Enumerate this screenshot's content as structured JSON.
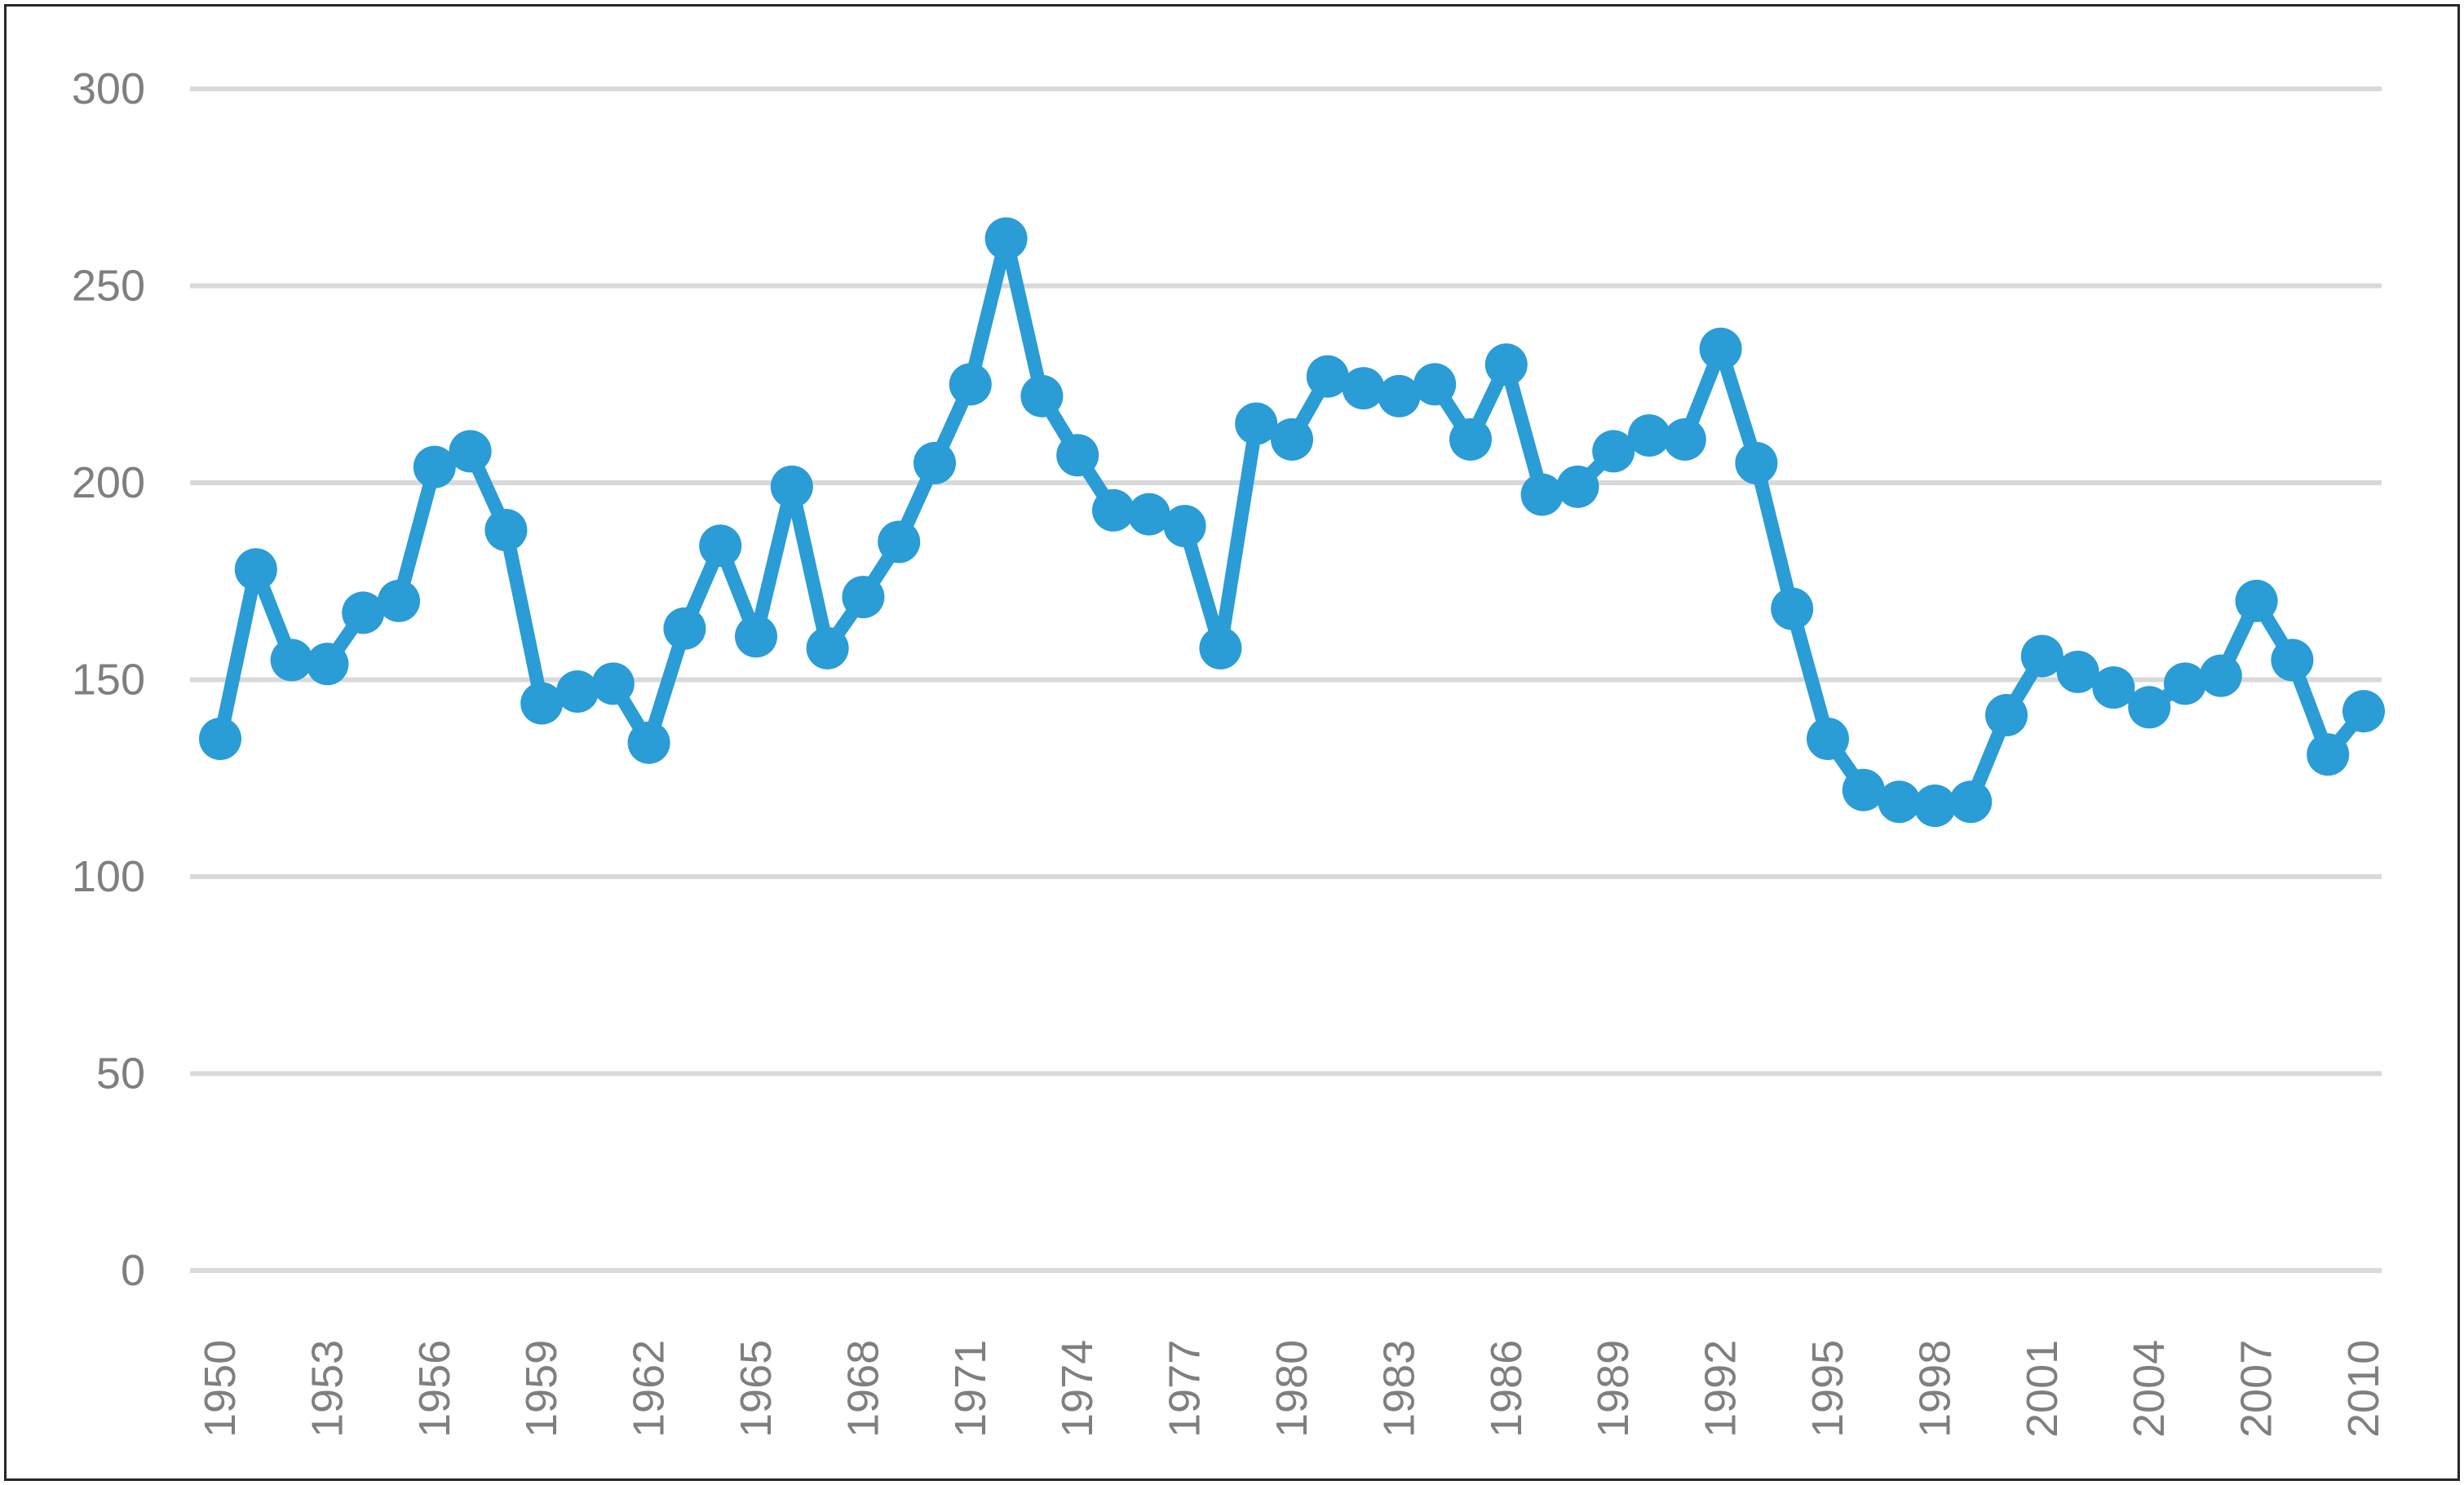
{
  "chart_data": {
    "type": "line",
    "title": "",
    "xlabel": "",
    "ylabel": "",
    "years": [
      1950,
      1951,
      1952,
      1953,
      1954,
      1955,
      1956,
      1957,
      1958,
      1959,
      1960,
      1961,
      1962,
      1963,
      1964,
      1965,
      1966,
      1967,
      1968,
      1969,
      1970,
      1971,
      1972,
      1973,
      1974,
      1975,
      1976,
      1977,
      1978,
      1979,
      1980,
      1981,
      1982,
      1983,
      1984,
      1985,
      1986,
      1987,
      1988,
      1989,
      1990,
      1991,
      1992,
      1993,
      1994,
      1995,
      1996,
      1997,
      1998,
      1999,
      2000,
      2001,
      2002,
      2003,
      2004,
      2005,
      2006,
      2007,
      2008,
      2009,
      2010
    ],
    "values": [
      135,
      178,
      155,
      154,
      167,
      170,
      204,
      208,
      188,
      144,
      147,
      149,
      134,
      163,
      184,
      161,
      199,
      158,
      171,
      185,
      205,
      225,
      262,
      222,
      207,
      193,
      192,
      189,
      158,
      215,
      211,
      227,
      224,
      222,
      225,
      211,
      230,
      197,
      199,
      208,
      212,
      211,
      234,
      205,
      168,
      135,
      122,
      119,
      118,
      119,
      141,
      156,
      152,
      148,
      143,
      149,
      151,
      170,
      155,
      131,
      142
    ],
    "x_tick_labels": [
      "1950",
      "1953",
      "1956",
      "1959",
      "1962",
      "1965",
      "1968",
      "1971",
      "1974",
      "1977",
      "1980",
      "1983",
      "1986",
      "1989",
      "1992",
      "1995",
      "1998",
      "2001",
      "2004",
      "2007",
      "2010"
    ],
    "x_tick_step_years": 3,
    "y_tick_labels": [
      "0",
      "50",
      "100",
      "150",
      "200",
      "250",
      "300"
    ],
    "y_ticks": [
      0,
      50,
      100,
      150,
      200,
      250,
      300
    ],
    "ylim": [
      0,
      300
    ],
    "grid": "horizontal",
    "legend": "none",
    "colors": {
      "series_line": "#2A9CD6",
      "marker_fill": "#2A9CD6",
      "gridline": "#D9D9D9",
      "tick_text": "#7F7F7F",
      "chart_border": "#262626",
      "background": "#FFFFFF"
    }
  }
}
